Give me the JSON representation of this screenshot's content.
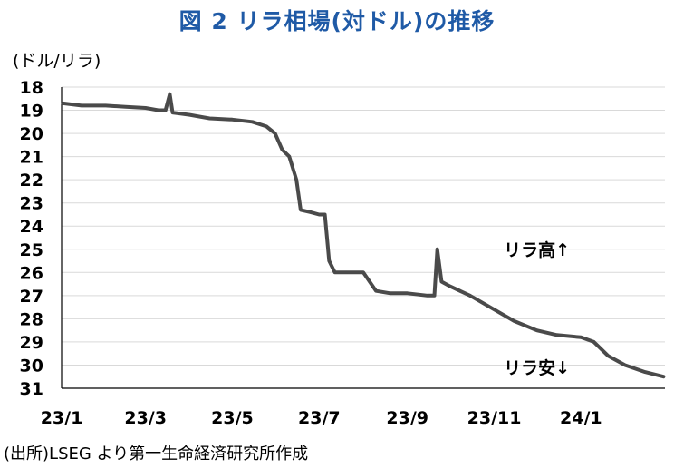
{
  "title": "図 2  リラ相場(対ドル)の推移",
  "unit_label": "(ドル/リラ)",
  "source": "(出所)LSEG より第一生命経済研究所作成",
  "colors": {
    "title": "#1f5aa6",
    "line": "#4a4a4a",
    "grid": "#d9d9d9",
    "axis": "#000000"
  },
  "chart_data": {
    "type": "line",
    "title": "図 2  リラ相場(対ドル)の推移",
    "ylabel": "(ドル/リラ)",
    "xlabel": "",
    "ylim": [
      18,
      31
    ],
    "y_reversed": true,
    "y_ticks": [
      18,
      19,
      20,
      21,
      22,
      23,
      24,
      25,
      26,
      27,
      28,
      29,
      30,
      31
    ],
    "x_ticks": [
      {
        "label": "23/1",
        "date": "2023-01-01"
      },
      {
        "label": "23/3",
        "date": "2023-03-01"
      },
      {
        "label": "23/5",
        "date": "2023-05-01"
      },
      {
        "label": "23/7",
        "date": "2023-07-01"
      },
      {
        "label": "23/9",
        "date": "2023-09-01"
      },
      {
        "label": "23/11",
        "date": "2023-11-01"
      },
      {
        "label": "24/1",
        "date": "2024-01-01"
      }
    ],
    "xlim": [
      "2023-01-01",
      "2024-02-29"
    ],
    "grid": true,
    "annotations": [
      {
        "text": "リラ高↑",
        "date": "2023-12-01",
        "value": 25.0
      },
      {
        "text": "リラ安↓",
        "date": "2023-12-01",
        "value": 30.1
      }
    ],
    "series": [
      {
        "points": [
          [
            "2023-01-02",
            18.7
          ],
          [
            "2023-01-15",
            18.8
          ],
          [
            "2023-02-01",
            18.8
          ],
          [
            "2023-02-15",
            18.85
          ],
          [
            "2023-03-01",
            18.9
          ],
          [
            "2023-03-10",
            19.0
          ],
          [
            "2023-03-15",
            19.0
          ],
          [
            "2023-03-18",
            18.3
          ],
          [
            "2023-03-20",
            19.1
          ],
          [
            "2023-04-01",
            19.2
          ],
          [
            "2023-04-15",
            19.35
          ],
          [
            "2023-05-01",
            19.4
          ],
          [
            "2023-05-15",
            19.5
          ],
          [
            "2023-05-25",
            19.7
          ],
          [
            "2023-05-31",
            20.0
          ],
          [
            "2023-06-05",
            20.7
          ],
          [
            "2023-06-10",
            21.0
          ],
          [
            "2023-06-15",
            22.0
          ],
          [
            "2023-06-18",
            23.3
          ],
          [
            "2023-06-25",
            23.4
          ],
          [
            "2023-07-01",
            23.5
          ],
          [
            "2023-07-05",
            23.5
          ],
          [
            "2023-07-08",
            25.5
          ],
          [
            "2023-07-12",
            26.0
          ],
          [
            "2023-07-20",
            26.0
          ],
          [
            "2023-08-01",
            26.0
          ],
          [
            "2023-08-10",
            26.8
          ],
          [
            "2023-08-20",
            26.9
          ],
          [
            "2023-09-01",
            26.9
          ],
          [
            "2023-09-15",
            27.0
          ],
          [
            "2023-09-20",
            27.0
          ],
          [
            "2023-09-22",
            25.0
          ],
          [
            "2023-09-25",
            26.4
          ],
          [
            "2023-10-01",
            26.6
          ],
          [
            "2023-10-15",
            27.0
          ],
          [
            "2023-11-01",
            27.6
          ],
          [
            "2023-11-15",
            28.1
          ],
          [
            "2023-12-01",
            28.5
          ],
          [
            "2023-12-15",
            28.7
          ],
          [
            "2024-01-01",
            28.8
          ],
          [
            "2024-01-10",
            29.0
          ],
          [
            "2024-01-20",
            29.6
          ],
          [
            "2024-02-01",
            30.0
          ],
          [
            "2024-02-15",
            30.3
          ],
          [
            "2024-02-28",
            30.5
          ]
        ]
      }
    ]
  }
}
